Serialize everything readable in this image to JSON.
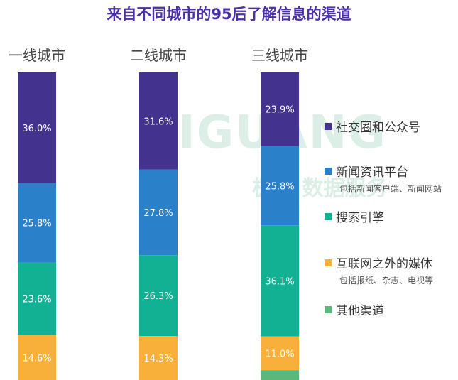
{
  "title": "来自不同城市的95后了解信息的渠道",
  "watermark": {
    "logo_text": "JIGUANG",
    "sub_text": "极光 数据服务"
  },
  "chart_data": {
    "type": "bar",
    "stacked": true,
    "percent_scale": true,
    "categories": [
      "一线城市",
      "二线城市",
      "三线城市"
    ],
    "series": [
      {
        "name": "社交圈和公众号",
        "color": "#44328f",
        "values": [
          36.0,
          31.6,
          23.9
        ],
        "labels": [
          "36.0%",
          "31.6%",
          "23.9%"
        ]
      },
      {
        "name": "新闻资讯平台",
        "sub": "包括新闻客户端、新闻网站",
        "color": "#2a80c9",
        "values": [
          25.8,
          27.8,
          25.8
        ],
        "labels": [
          "25.8%",
          "27.8%",
          "25.8%"
        ]
      },
      {
        "name": "搜索引擎",
        "color": "#13b193",
        "values": [
          23.6,
          26.3,
          36.1
        ],
        "labels": [
          "23.6%",
          "26.3%",
          "36.1%"
        ]
      },
      {
        "name": "互联网之外的媒体",
        "sub": "包括报纸、杂志、电视等",
        "color": "#f8b03a",
        "values": [
          14.6,
          14.3,
          11.0
        ],
        "labels": [
          "14.6%",
          "14.3%",
          "11.0%"
        ]
      },
      {
        "name": "其他渠道",
        "color": "#5cb87a",
        "values": [
          0,
          0,
          3.2
        ],
        "labels": [
          "",
          "",
          ""
        ]
      }
    ],
    "ylim": [
      0,
      100
    ]
  }
}
